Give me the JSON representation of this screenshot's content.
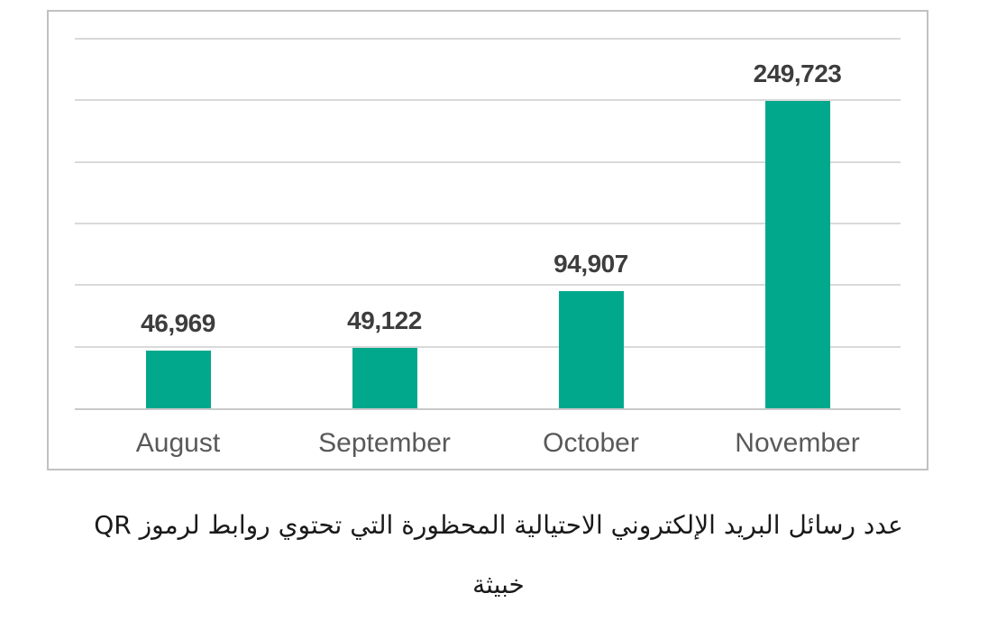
{
  "chart_data": {
    "type": "bar",
    "categories": [
      "August",
      "September",
      "October",
      "November"
    ],
    "values": [
      46969,
      49122,
      94907,
      249723
    ],
    "value_labels": [
      "46,969",
      "49,122",
      "94,907",
      "249,723"
    ],
    "title": "",
    "xlabel": "",
    "ylabel": "",
    "ylim": [
      0,
      300000
    ],
    "gridline_step": 50000,
    "grid": true,
    "legend": false,
    "y_axis_labels_visible": false
  },
  "caption": {
    "line1": "عدد رسائل البريد الإلكتروني الاحتيالية المحظورة التي تحتوي روابط لرموز QR",
    "line2": "خبيثة"
  },
  "colors": {
    "bar": "#02a88c",
    "value_label": "#3d3d3d",
    "category_label": "#595959",
    "gridline": "#d9d9d9",
    "chart_border": "#c1c1c1",
    "caption_text": "#1a1a1a",
    "background": "#ffffff"
  }
}
